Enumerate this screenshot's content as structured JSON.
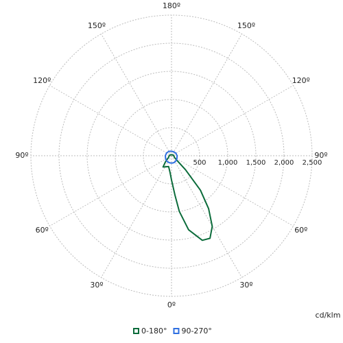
{
  "chart_data": {
    "type": "polar",
    "unit_label": "cd/klm",
    "rlim": [
      0,
      2500
    ],
    "rticks": [
      {
        "value": 500,
        "label": "500"
      },
      {
        "value": 1000,
        "label": "1,000"
      },
      {
        "value": 1500,
        "label": "1,500"
      },
      {
        "value": 2000,
        "label": "2,000"
      },
      {
        "value": 2500,
        "label": "2,500"
      }
    ],
    "angle_ticks": [
      {
        "value": 180,
        "label": "180º"
      },
      {
        "value": -150,
        "label": "150º"
      },
      {
        "value": 150,
        "label": "150º"
      },
      {
        "value": -120,
        "label": "120º"
      },
      {
        "value": 120,
        "label": "120º"
      },
      {
        "value": -90,
        "label": "90º"
      },
      {
        "value": 90,
        "label": "90º"
      },
      {
        "value": -60,
        "label": "60º"
      },
      {
        "value": 60,
        "label": "60º"
      },
      {
        "value": -30,
        "label": "30º"
      },
      {
        "value": 30,
        "label": "30º"
      },
      {
        "value": 0,
        "label": "0º"
      }
    ],
    "grid": true,
    "x": [
      -180,
      -150,
      -120,
      -90,
      -60,
      -45,
      -37,
      -30,
      -15,
      -5,
      0,
      5,
      8,
      13,
      20,
      25,
      30,
      35,
      40,
      45,
      50,
      60,
      90,
      120,
      150,
      180
    ],
    "series": [
      {
        "name": "0-180°",
        "color": "#0b6b3a",
        "values": [
          20,
          20,
          30,
          40,
          60,
          150,
          250,
          230,
          200,
          300,
          430,
          700,
          1000,
          1350,
          1600,
          1620,
          1450,
          1150,
          800,
          350,
          120,
          60,
          40,
          30,
          20,
          20
        ]
      },
      {
        "name": "90-270°",
        "color": "#2f6fe0",
        "values": [
          80,
          90,
          100,
          110,
          120,
          125,
          128,
          130,
          130,
          130,
          130,
          130,
          130,
          130,
          130,
          128,
          125,
          122,
          120,
          118,
          115,
          110,
          100,
          90,
          80,
          80
        ]
      }
    ]
  }
}
